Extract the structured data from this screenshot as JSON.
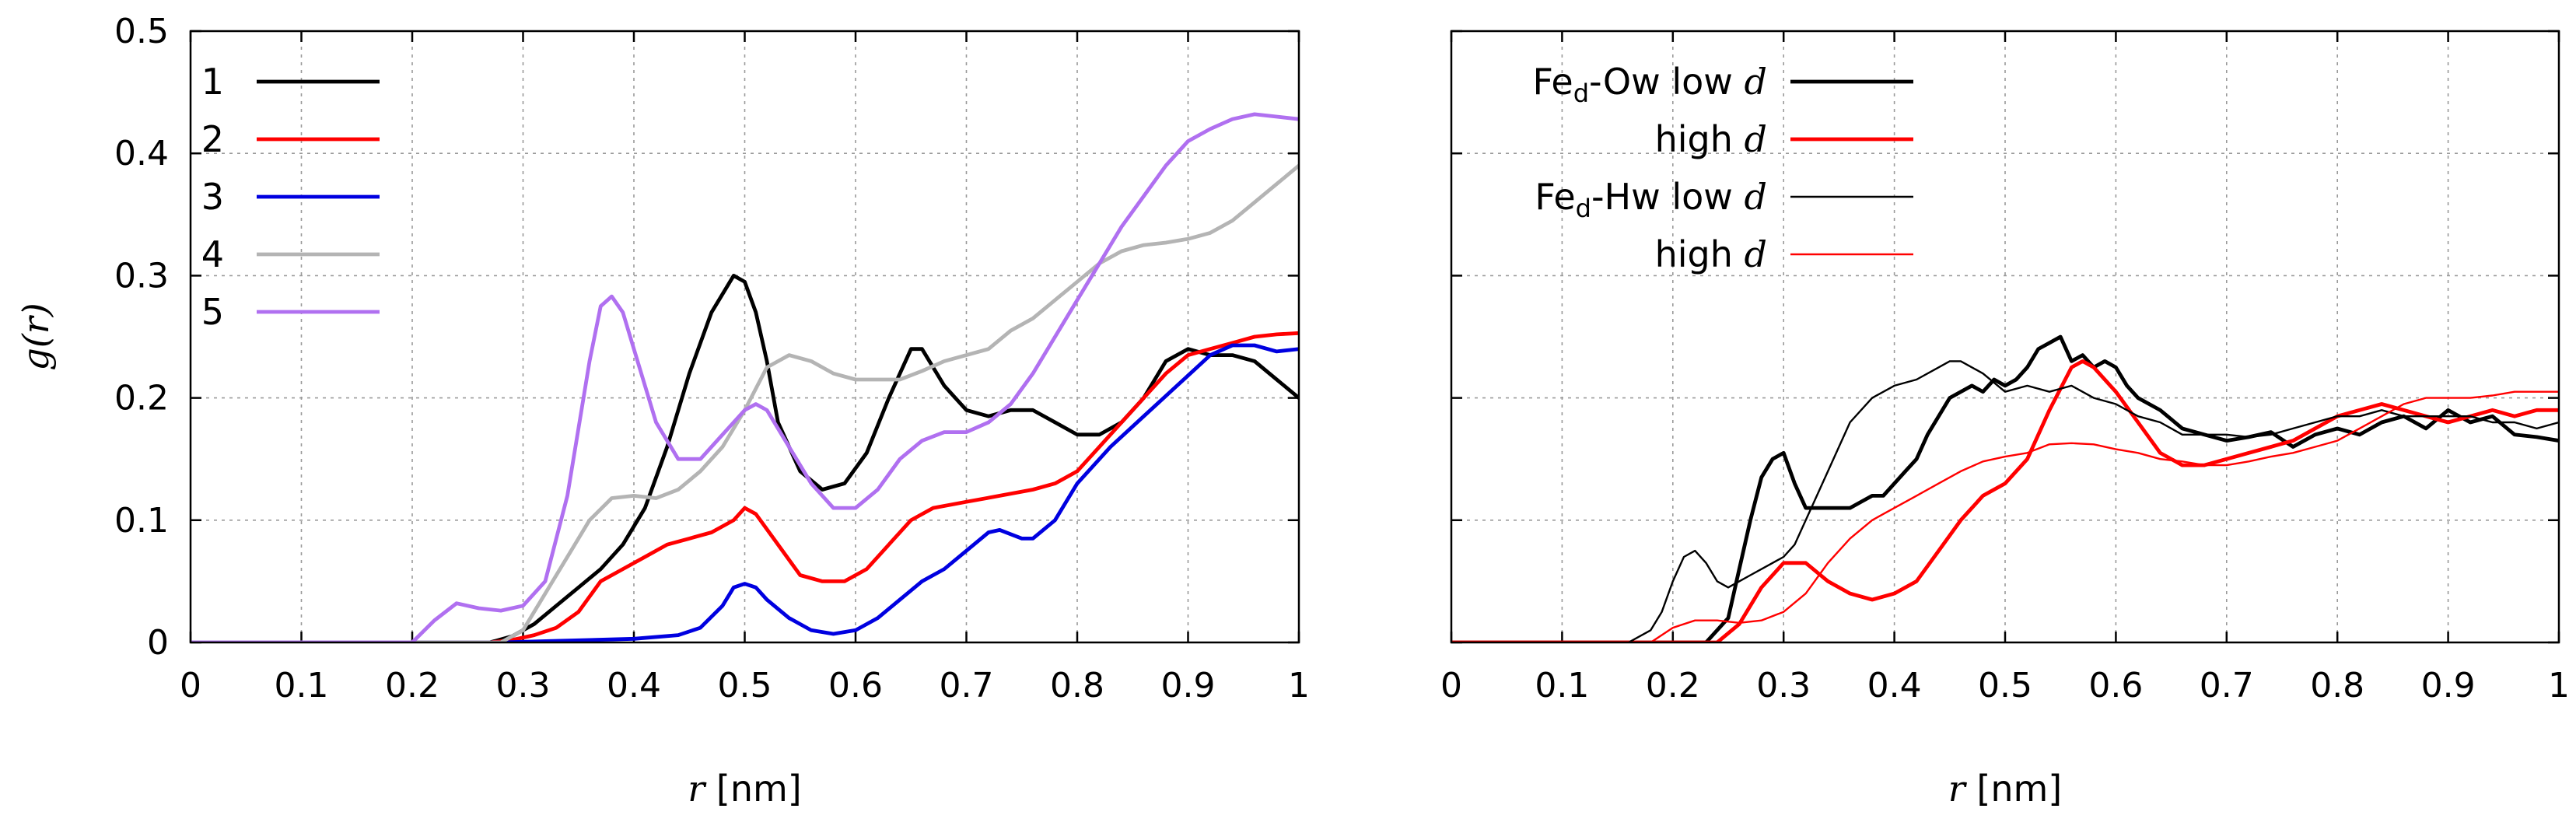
{
  "chart_data": [
    {
      "type": "line",
      "xlabel": "r [nm]",
      "ylabel": "g(r)",
      "xlim": [
        0,
        1
      ],
      "ylim": [
        0,
        0.5
      ],
      "xticks": [
        "0",
        "0.1",
        "0.2",
        "0.3",
        "0.4",
        "0.5",
        "0.6",
        "0.7",
        "0.8",
        "0.9",
        "1"
      ],
      "yticks": [
        "0",
        "0.1",
        "0.2",
        "0.3",
        "0.4",
        "0.5"
      ],
      "grid": true,
      "legend_position": "top-left",
      "series": [
        {
          "name": "1",
          "color": "#000000",
          "x": [
            0,
            0.27,
            0.29,
            0.31,
            0.33,
            0.35,
            0.37,
            0.39,
            0.41,
            0.43,
            0.45,
            0.47,
            0.49,
            0.5,
            0.51,
            0.52,
            0.53,
            0.55,
            0.57,
            0.59,
            0.61,
            0.63,
            0.65,
            0.66,
            0.68,
            0.7,
            0.72,
            0.74,
            0.76,
            0.78,
            0.8,
            0.82,
            0.84,
            0.86,
            0.88,
            0.9,
            0.92,
            0.94,
            0.96,
            0.98,
            1.0
          ],
          "y": [
            0,
            0,
            0.005,
            0.015,
            0.03,
            0.045,
            0.06,
            0.08,
            0.11,
            0.16,
            0.22,
            0.27,
            0.3,
            0.295,
            0.27,
            0.23,
            0.18,
            0.14,
            0.125,
            0.13,
            0.155,
            0.2,
            0.24,
            0.24,
            0.21,
            0.19,
            0.185,
            0.19,
            0.19,
            0.18,
            0.17,
            0.17,
            0.18,
            0.2,
            0.23,
            0.24,
            0.235,
            0.235,
            0.23,
            0.215,
            0.2
          ]
        },
        {
          "name": "2",
          "color": "#ff0000",
          "x": [
            0,
            0.27,
            0.29,
            0.31,
            0.33,
            0.35,
            0.37,
            0.39,
            0.41,
            0.43,
            0.45,
            0.47,
            0.49,
            0.5,
            0.51,
            0.53,
            0.55,
            0.57,
            0.59,
            0.61,
            0.63,
            0.65,
            0.67,
            0.7,
            0.73,
            0.76,
            0.78,
            0.8,
            0.82,
            0.84,
            0.86,
            0.88,
            0.9,
            0.92,
            0.94,
            0.96,
            0.98,
            1.0
          ],
          "y": [
            0,
            0,
            0.002,
            0.006,
            0.012,
            0.025,
            0.05,
            0.06,
            0.07,
            0.08,
            0.085,
            0.09,
            0.1,
            0.11,
            0.105,
            0.08,
            0.055,
            0.05,
            0.05,
            0.06,
            0.08,
            0.1,
            0.11,
            0.115,
            0.12,
            0.125,
            0.13,
            0.14,
            0.16,
            0.18,
            0.2,
            0.22,
            0.235,
            0.24,
            0.245,
            0.25,
            0.252,
            0.253
          ]
        },
        {
          "name": "3",
          "color": "#0000e0",
          "x": [
            0,
            0.28,
            0.32,
            0.36,
            0.4,
            0.44,
            0.46,
            0.48,
            0.49,
            0.5,
            0.51,
            0.52,
            0.54,
            0.56,
            0.58,
            0.6,
            0.62,
            0.64,
            0.66,
            0.68,
            0.7,
            0.72,
            0.73,
            0.75,
            0.76,
            0.78,
            0.8,
            0.83,
            0.86,
            0.89,
            0.92,
            0.94,
            0.96,
            0.98,
            1.0
          ],
          "y": [
            0,
            0,
            0.001,
            0.002,
            0.003,
            0.006,
            0.012,
            0.03,
            0.045,
            0.048,
            0.045,
            0.035,
            0.02,
            0.01,
            0.007,
            0.01,
            0.02,
            0.035,
            0.05,
            0.06,
            0.075,
            0.09,
            0.092,
            0.085,
            0.085,
            0.1,
            0.13,
            0.16,
            0.185,
            0.21,
            0.235,
            0.243,
            0.243,
            0.238,
            0.24
          ]
        },
        {
          "name": "4",
          "color": "#b4b4b4",
          "x": [
            0,
            0.28,
            0.3,
            0.32,
            0.34,
            0.36,
            0.38,
            0.4,
            0.42,
            0.44,
            0.46,
            0.48,
            0.5,
            0.52,
            0.54,
            0.56,
            0.58,
            0.6,
            0.62,
            0.64,
            0.66,
            0.68,
            0.7,
            0.72,
            0.74,
            0.76,
            0.78,
            0.8,
            0.82,
            0.84,
            0.86,
            0.88,
            0.9,
            0.92,
            0.94,
            0.96,
            0.98,
            1.0
          ],
          "y": [
            0,
            0,
            0.01,
            0.04,
            0.07,
            0.1,
            0.118,
            0.12,
            0.118,
            0.125,
            0.14,
            0.16,
            0.19,
            0.225,
            0.235,
            0.23,
            0.22,
            0.215,
            0.215,
            0.215,
            0.222,
            0.23,
            0.235,
            0.24,
            0.255,
            0.265,
            0.28,
            0.295,
            0.31,
            0.32,
            0.325,
            0.327,
            0.33,
            0.335,
            0.345,
            0.36,
            0.375,
            0.39
          ]
        },
        {
          "name": "5",
          "color": "#b070f0",
          "x": [
            0,
            0.2,
            0.22,
            0.24,
            0.26,
            0.28,
            0.3,
            0.32,
            0.34,
            0.36,
            0.37,
            0.38,
            0.39,
            0.4,
            0.42,
            0.44,
            0.46,
            0.48,
            0.5,
            0.51,
            0.52,
            0.54,
            0.56,
            0.58,
            0.6,
            0.62,
            0.64,
            0.66,
            0.68,
            0.7,
            0.72,
            0.74,
            0.76,
            0.78,
            0.8,
            0.82,
            0.84,
            0.86,
            0.88,
            0.9,
            0.92,
            0.94,
            0.96,
            0.98,
            1.0
          ],
          "y": [
            0,
            0,
            0.018,
            0.032,
            0.028,
            0.026,
            0.03,
            0.05,
            0.12,
            0.23,
            0.275,
            0.283,
            0.27,
            0.24,
            0.18,
            0.15,
            0.15,
            0.17,
            0.19,
            0.195,
            0.19,
            0.16,
            0.13,
            0.11,
            0.11,
            0.125,
            0.15,
            0.165,
            0.172,
            0.172,
            0.18,
            0.195,
            0.22,
            0.25,
            0.28,
            0.31,
            0.34,
            0.365,
            0.39,
            0.41,
            0.42,
            0.428,
            0.432,
            0.43,
            0.428
          ]
        }
      ]
    },
    {
      "type": "line",
      "xlabel": "r [nm]",
      "ylabel": "",
      "xlim": [
        0,
        1
      ],
      "ylim": [
        0,
        0.5
      ],
      "xticks": [
        "0",
        "0.1",
        "0.2",
        "0.3",
        "0.4",
        "0.5",
        "0.6",
        "0.7",
        "0.8",
        "0.9",
        "1"
      ],
      "grid": true,
      "legend_position": "top-left",
      "series": [
        {
          "group": "Fe",
          "group_sub": "d",
          "group_suffix": "-Ow",
          "name": "low",
          "name_math": "d",
          "color": "#000000",
          "thick": true,
          "x": [
            0,
            0.23,
            0.25,
            0.26,
            0.27,
            0.28,
            0.29,
            0.3,
            0.31,
            0.32,
            0.34,
            0.36,
            0.37,
            0.38,
            0.39,
            0.4,
            0.41,
            0.42,
            0.43,
            0.45,
            0.47,
            0.48,
            0.49,
            0.5,
            0.51,
            0.52,
            0.53,
            0.54,
            0.55,
            0.56,
            0.57,
            0.58,
            0.59,
            0.6,
            0.61,
            0.62,
            0.64,
            0.66,
            0.68,
            0.7,
            0.72,
            0.74,
            0.76,
            0.78,
            0.8,
            0.82,
            0.84,
            0.86,
            0.88,
            0.9,
            0.92,
            0.94,
            0.96,
            0.98,
            1.0
          ],
          "y": [
            0,
            0,
            0.02,
            0.06,
            0.1,
            0.135,
            0.15,
            0.155,
            0.13,
            0.11,
            0.11,
            0.11,
            0.115,
            0.12,
            0.12,
            0.13,
            0.14,
            0.15,
            0.17,
            0.2,
            0.21,
            0.205,
            0.215,
            0.21,
            0.215,
            0.225,
            0.24,
            0.245,
            0.25,
            0.23,
            0.235,
            0.225,
            0.23,
            0.225,
            0.21,
            0.2,
            0.19,
            0.175,
            0.17,
            0.165,
            0.168,
            0.172,
            0.16,
            0.17,
            0.175,
            0.17,
            0.18,
            0.185,
            0.175,
            0.19,
            0.18,
            0.185,
            0.17,
            0.168,
            0.165
          ]
        },
        {
          "group": "",
          "group_sub": "",
          "group_suffix": "",
          "name": "high",
          "name_math": "d",
          "color": "#ff0000",
          "thick": true,
          "x": [
            0,
            0.24,
            0.26,
            0.28,
            0.3,
            0.32,
            0.34,
            0.36,
            0.38,
            0.4,
            0.42,
            0.44,
            0.46,
            0.48,
            0.5,
            0.52,
            0.54,
            0.56,
            0.57,
            0.58,
            0.6,
            0.62,
            0.64,
            0.66,
            0.68,
            0.7,
            0.72,
            0.74,
            0.76,
            0.78,
            0.8,
            0.82,
            0.84,
            0.86,
            0.88,
            0.9,
            0.92,
            0.94,
            0.96,
            0.98,
            1.0
          ],
          "y": [
            0,
            0,
            0.015,
            0.045,
            0.065,
            0.065,
            0.05,
            0.04,
            0.035,
            0.04,
            0.05,
            0.075,
            0.1,
            0.12,
            0.13,
            0.15,
            0.19,
            0.225,
            0.23,
            0.225,
            0.205,
            0.18,
            0.155,
            0.145,
            0.145,
            0.15,
            0.155,
            0.16,
            0.165,
            0.175,
            0.185,
            0.19,
            0.195,
            0.19,
            0.185,
            0.18,
            0.185,
            0.19,
            0.185,
            0.19,
            0.19
          ]
        },
        {
          "group": "Fe",
          "group_sub": "d",
          "group_suffix": "-Hw",
          "name": "low",
          "name_math": "d",
          "color": "#000000",
          "thick": false,
          "x": [
            0,
            0.16,
            0.18,
            0.19,
            0.2,
            0.21,
            0.22,
            0.23,
            0.24,
            0.25,
            0.26,
            0.27,
            0.28,
            0.29,
            0.3,
            0.31,
            0.32,
            0.34,
            0.36,
            0.38,
            0.4,
            0.42,
            0.44,
            0.45,
            0.46,
            0.48,
            0.5,
            0.52,
            0.54,
            0.56,
            0.58,
            0.6,
            0.62,
            0.64,
            0.66,
            0.68,
            0.7,
            0.72,
            0.74,
            0.76,
            0.78,
            0.8,
            0.82,
            0.84,
            0.86,
            0.88,
            0.9,
            0.92,
            0.94,
            0.96,
            0.98,
            1.0
          ],
          "y": [
            0,
            0,
            0.01,
            0.025,
            0.05,
            0.07,
            0.075,
            0.065,
            0.05,
            0.045,
            0.05,
            0.055,
            0.06,
            0.065,
            0.07,
            0.08,
            0.1,
            0.14,
            0.18,
            0.2,
            0.21,
            0.215,
            0.225,
            0.23,
            0.23,
            0.22,
            0.205,
            0.21,
            0.205,
            0.21,
            0.2,
            0.195,
            0.185,
            0.18,
            0.17,
            0.17,
            0.17,
            0.168,
            0.17,
            0.175,
            0.18,
            0.185,
            0.185,
            0.19,
            0.185,
            0.185,
            0.185,
            0.185,
            0.18,
            0.18,
            0.175,
            0.18
          ]
        },
        {
          "group": "",
          "group_sub": "",
          "group_suffix": "",
          "name": "high",
          "name_math": "d",
          "color": "#ff0000",
          "thick": false,
          "x": [
            0,
            0.18,
            0.2,
            0.22,
            0.24,
            0.26,
            0.28,
            0.3,
            0.32,
            0.34,
            0.36,
            0.38,
            0.4,
            0.42,
            0.44,
            0.46,
            0.48,
            0.5,
            0.52,
            0.54,
            0.56,
            0.58,
            0.6,
            0.62,
            0.64,
            0.66,
            0.68,
            0.7,
            0.72,
            0.74,
            0.76,
            0.78,
            0.8,
            0.82,
            0.84,
            0.86,
            0.88,
            0.9,
            0.92,
            0.94,
            0.96,
            0.98,
            1.0
          ],
          "y": [
            0,
            0,
            0.012,
            0.018,
            0.018,
            0.016,
            0.018,
            0.025,
            0.04,
            0.065,
            0.085,
            0.1,
            0.11,
            0.12,
            0.13,
            0.14,
            0.148,
            0.152,
            0.155,
            0.162,
            0.163,
            0.162,
            0.158,
            0.155,
            0.15,
            0.148,
            0.145,
            0.145,
            0.148,
            0.152,
            0.155,
            0.16,
            0.165,
            0.175,
            0.185,
            0.195,
            0.2,
            0.2,
            0.2,
            0.202,
            0.205,
            0.205,
            0.205
          ]
        }
      ]
    }
  ]
}
